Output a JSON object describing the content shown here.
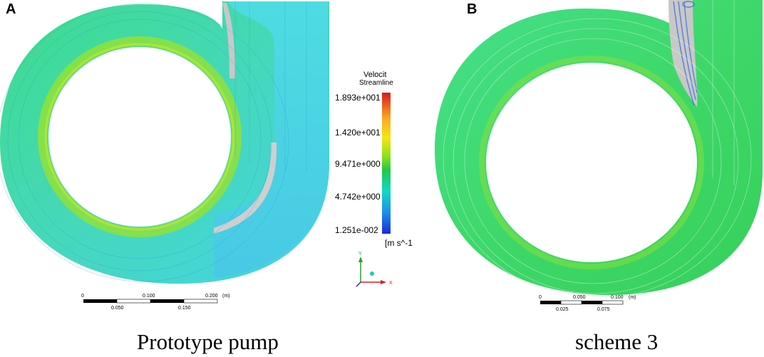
{
  "figure": {
    "panels": [
      {
        "letter": "A",
        "caption": "Prototype pump",
        "scale_bar": {
          "top_ticks": [
            "0",
            "0.100",
            "0.200",
            "(m)"
          ],
          "bottom_ticks": [
            "0.050",
            "0.150"
          ]
        }
      },
      {
        "letter": "B",
        "caption": "scheme 3",
        "scale_bar": {
          "top_ticks": [
            "0",
            "0.050",
            "0.100",
            "(m)"
          ],
          "bottom_ticks": [
            "0.025",
            "0.075"
          ]
        }
      }
    ],
    "legend": {
      "title": "Velocit",
      "subtitle": "Streamline",
      "ticks": [
        "1.893e+001",
        "1.420e+001",
        "9.471e+000",
        "4.742e+000",
        "1.251e-002"
      ],
      "unit": "[m s^-1",
      "colors": [
        "#d7191c",
        "#f9a825",
        "#f5e614",
        "#8ee21a",
        "#22c84a",
        "#14d8c8",
        "#1e8fe6",
        "#1a2bd6"
      ]
    },
    "axis_triad": {
      "y": "Y",
      "x": "X"
    },
    "colors": {
      "flow_cyan": "#41d6e8",
      "flow_green": "#3ddc6a",
      "flow_yellow_green": "#b4e61e",
      "wall_grey": "#c8c8c8",
      "streamline_blue": "#2a62e0"
    }
  }
}
